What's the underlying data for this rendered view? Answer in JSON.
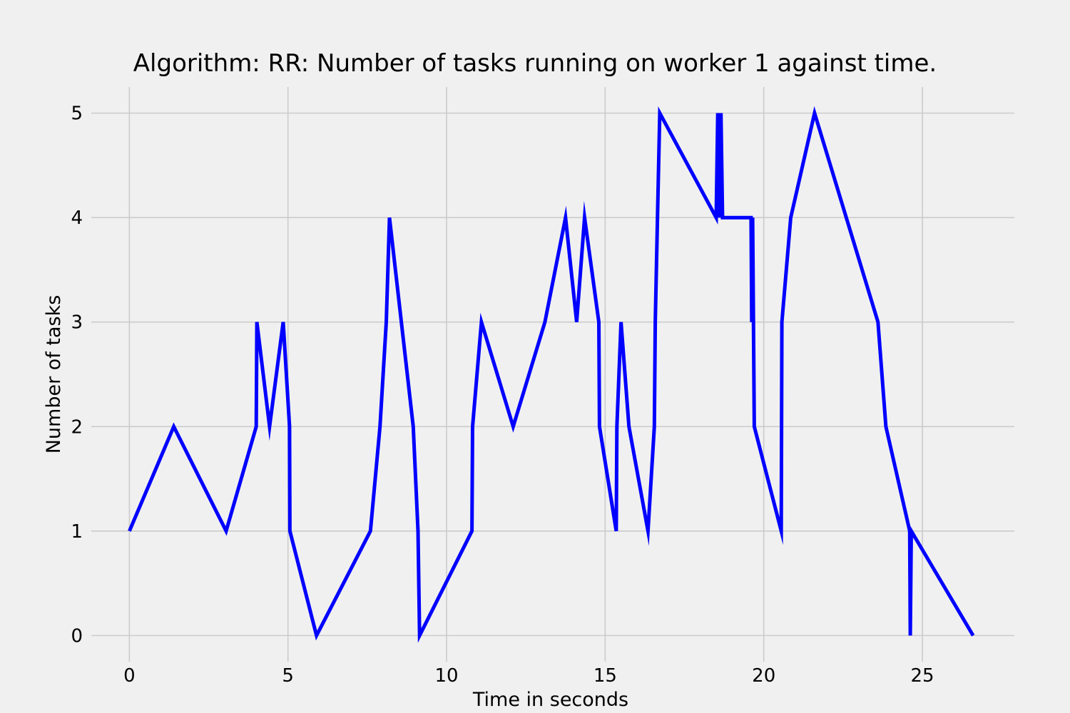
{
  "chart_data": {
    "type": "line",
    "title": "Algorithm: RR: Number of tasks running on worker 1 against time.",
    "xlabel": "Time in seconds",
    "ylabel": "Number of tasks",
    "xlim": [
      -1.2,
      27.9
    ],
    "ylim": [
      -0.25,
      5.25
    ],
    "x_ticks": [
      0,
      5,
      10,
      15,
      20,
      25
    ],
    "y_ticks": [
      0,
      1,
      2,
      3,
      4,
      5
    ],
    "grid": true,
    "series": [
      {
        "color": "#0000ff",
        "x": [
          0,
          1.4,
          3.05,
          4.0,
          4.02,
          4.42,
          4.85,
          5.05,
          5.06,
          5.9,
          7.6,
          7.9,
          8.1,
          8.2,
          8.95,
          9.1,
          9.15,
          10.8,
          10.82,
          11.1,
          12.1,
          13.1,
          13.75,
          14.1,
          14.35,
          14.8,
          14.82,
          15.35,
          15.37,
          15.5,
          15.75,
          16.35,
          16.55,
          16.58,
          16.65,
          16.72,
          18.5,
          18.55,
          18.6,
          18.65,
          18.7,
          19.6,
          19.62,
          19.65,
          19.7,
          20.55,
          20.57,
          20.85,
          21.6,
          23.6,
          23.85,
          24.6,
          24.62,
          24.65,
          26.6
        ],
        "y": [
          1,
          2,
          1,
          2,
          3,
          2,
          3,
          2,
          1,
          0,
          1,
          2,
          3,
          4,
          2,
          1,
          0,
          1,
          2,
          3,
          2,
          3,
          4,
          3,
          4,
          3,
          2,
          1,
          2,
          3,
          2,
          1,
          2,
          3,
          4,
          5,
          4,
          5,
          4,
          5,
          4,
          4,
          3,
          4,
          2,
          1,
          3,
          4,
          5,
          3,
          2,
          1,
          0,
          1,
          0
        ]
      }
    ]
  }
}
